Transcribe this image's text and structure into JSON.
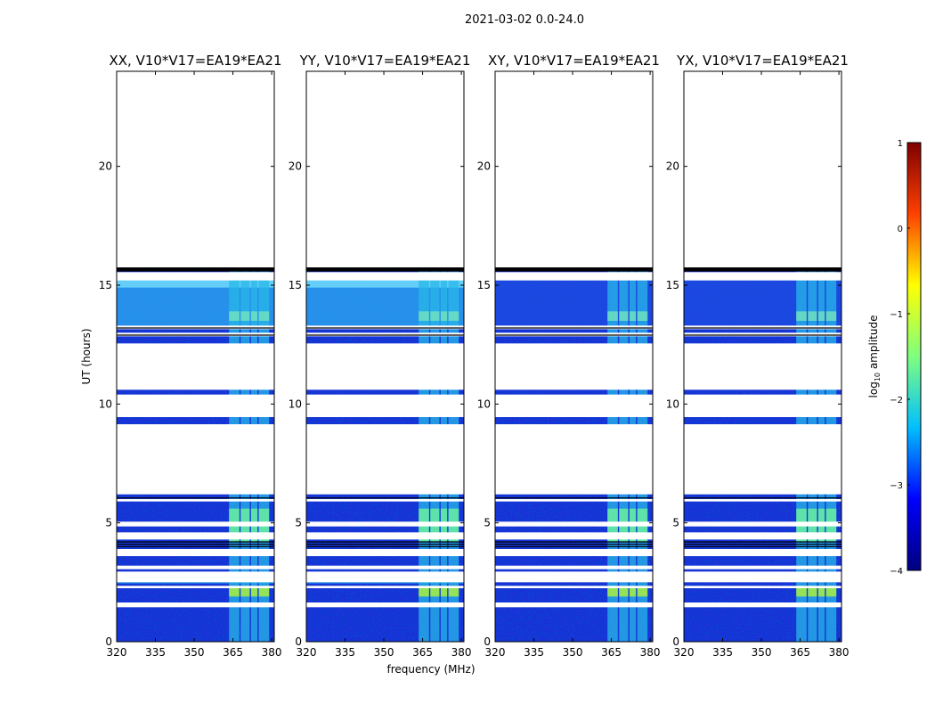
{
  "figure": {
    "suptitle": "2021-03-02 0.0-24.0"
  },
  "chart_data": {
    "type": "heatmap",
    "xlabel": "frequency (MHz)",
    "ylabel": "UT (hours)",
    "xlim": [
      320,
      381
    ],
    "ylim": [
      0,
      24
    ],
    "xticks": [
      320,
      335,
      350,
      365,
      380
    ],
    "yticks": [
      0,
      5,
      10,
      15,
      20
    ],
    "panels": [
      {
        "title": "XX, V10*V17=EA19*EA21",
        "pol": "XX"
      },
      {
        "title": "YY, V10*V17=EA19*EA21",
        "pol": "YY"
      },
      {
        "title": "XY, V10*V17=EA19*EA21",
        "pol": "XY"
      },
      {
        "title": "YX, V10*V17=EA19*EA21",
        "pol": "YX"
      }
    ],
    "data_extent_hours": [
      0,
      15.7
    ],
    "empty_hours": [
      15.7,
      24
    ],
    "flagged_gaps_hours": [
      1.45,
      1.65,
      2.25,
      2.35,
      2.5,
      2.95,
      3.05,
      3.2,
      3.6,
      3.9,
      4.3,
      4.6,
      4.85,
      5.05,
      5.9,
      6.0,
      6.2,
      9.15,
      9.45,
      10.4,
      10.6,
      12.55,
      12.85,
      13.0,
      13.15,
      13.3,
      15.2,
      15.55
    ],
    "rfi_bands_mhz": [
      [
        363.5,
        367.5
      ],
      [
        368,
        371.5
      ],
      [
        372,
        374.5
      ],
      [
        375,
        379
      ]
    ],
    "colorbar": {
      "label": "log10 amplitude",
      "ticks": [
        1,
        0,
        -1,
        -2,
        -3,
        -4
      ],
      "range": [
        -4,
        1
      ],
      "colors": [
        "#00007f",
        "#0000ff",
        "#00bfff",
        "#7fff7f",
        "#ffff00",
        "#ff4000",
        "#7f0000"
      ]
    }
  }
}
